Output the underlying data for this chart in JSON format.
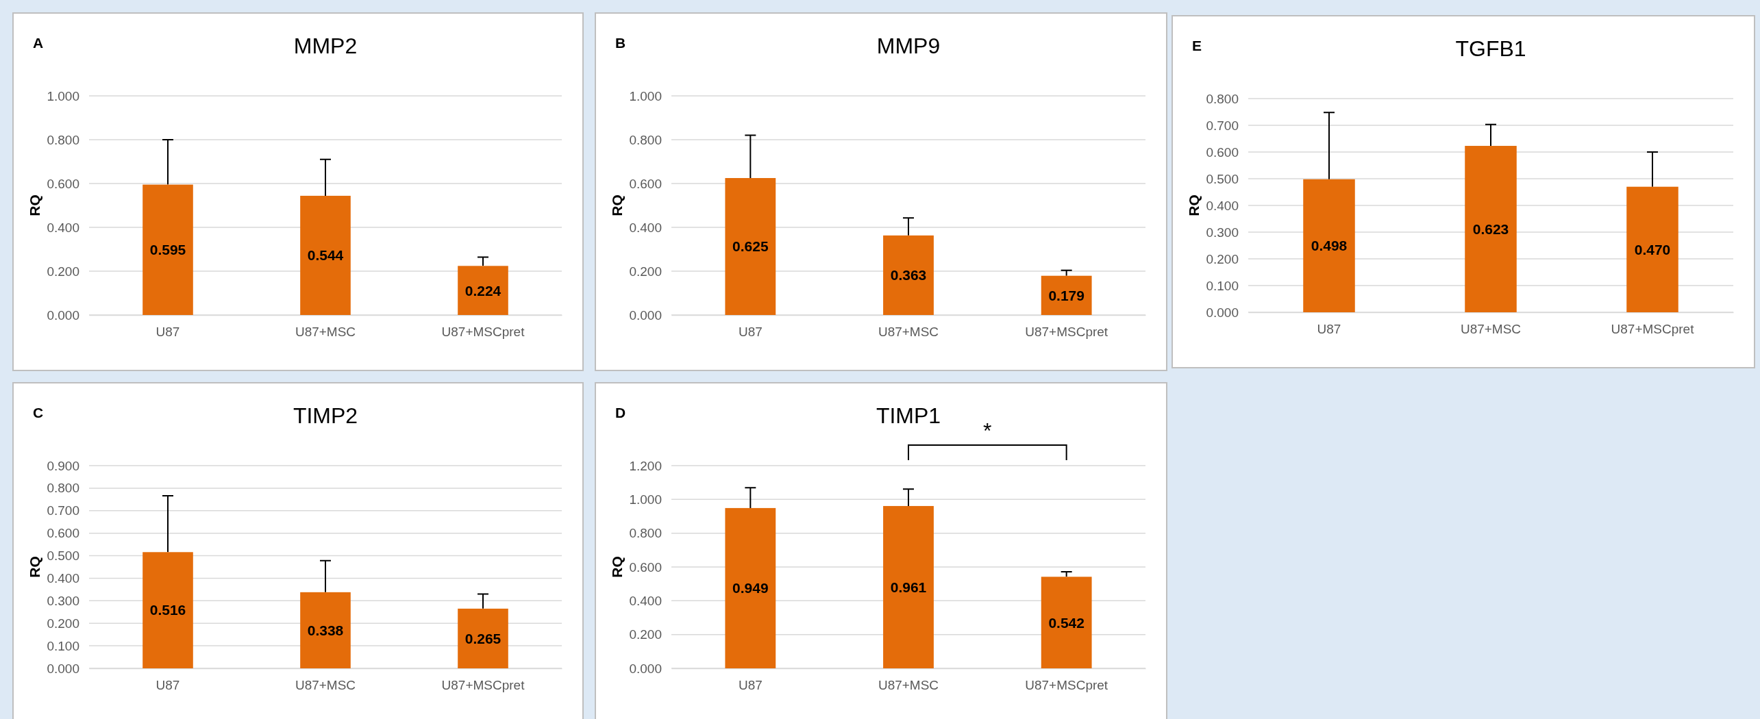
{
  "chart_data": [
    {
      "type": "bar",
      "title": "MMP2",
      "ylabel": "RQ",
      "annotations": [
        "A"
      ],
      "categories": [
        "U87",
        "U87+MSC",
        "U87+MSCpret"
      ],
      "values": [
        0.595,
        0.544,
        0.224
      ],
      "value_labels": [
        "0.595",
        "0.544",
        "0.224"
      ],
      "errors": [
        [
          0.595,
          0.8
        ],
        [
          0.544,
          0.71
        ],
        [
          0.224,
          0.264
        ]
      ],
      "color": "#e46c0a",
      "ylim": [
        0,
        1
      ],
      "yticks": [
        {
          "value": 0,
          "label": "0.000"
        },
        {
          "value": 0.2,
          "label": "0.200"
        },
        {
          "value": 0.4,
          "label": "0.400"
        },
        {
          "value": 0.6,
          "label": "0.600"
        },
        {
          "value": 0.8,
          "label": "0.800"
        },
        {
          "value": 1,
          "label": "1.000"
        }
      ],
      "grid": "y"
    },
    {
      "type": "bar",
      "title": "MMP9",
      "ylabel": "RQ",
      "annotations": [
        "B"
      ],
      "categories": [
        "U87",
        "U87+MSC",
        "U87+MSCpret"
      ],
      "values": [
        0.625,
        0.363,
        0.179
      ],
      "value_labels": [
        "0.625",
        "0.363",
        "0.179"
      ],
      "errors": [
        [
          0.625,
          0.82
        ],
        [
          0.363,
          0.443
        ],
        [
          0.179,
          0.204
        ]
      ],
      "color": "#e46c0a",
      "ylim": [
        0,
        1
      ],
      "yticks": [
        {
          "value": 0,
          "label": "0.000"
        },
        {
          "value": 0.2,
          "label": "0.200"
        },
        {
          "value": 0.4,
          "label": "0.400"
        },
        {
          "value": 0.6,
          "label": "0.600"
        },
        {
          "value": 0.8,
          "label": "0.800"
        },
        {
          "value": 1,
          "label": "1.000"
        }
      ],
      "grid": "y"
    },
    {
      "type": "bar",
      "title": "TGFB1",
      "ylabel": "RQ",
      "annotations": [
        "E"
      ],
      "categories": [
        "U87",
        "U87+MSC",
        "U87+MSCpret"
      ],
      "values": [
        0.498,
        0.623,
        0.47
      ],
      "value_labels": [
        "0.498",
        "0.623",
        "0.470"
      ],
      "errors": [
        [
          0.498,
          0.748
        ],
        [
          0.623,
          0.703
        ],
        [
          0.47,
          0.6
        ]
      ],
      "color": "#e46c0a",
      "ylim": [
        0,
        0.8
      ],
      "yticks": [
        {
          "value": 0,
          "label": "0.000"
        },
        {
          "value": 0.1,
          "label": "0.100"
        },
        {
          "value": 0.2,
          "label": "0.200"
        },
        {
          "value": 0.3,
          "label": "0.300"
        },
        {
          "value": 0.4,
          "label": "0.400"
        },
        {
          "value": 0.5,
          "label": "0.500"
        },
        {
          "value": 0.6,
          "label": "0.600"
        },
        {
          "value": 0.7,
          "label": "0.700"
        },
        {
          "value": 0.8,
          "label": "0.800"
        }
      ],
      "grid": "y"
    },
    {
      "type": "bar",
      "title": "TIMP2",
      "ylabel": "RQ",
      "annotations": [
        "C"
      ],
      "categories": [
        "U87",
        "U87+MSC",
        "U87+MSCpret"
      ],
      "values": [
        0.516,
        0.338,
        0.265
      ],
      "value_labels": [
        "0.516",
        "0.338",
        "0.265"
      ],
      "errors": [
        [
          0.516,
          0.766
        ],
        [
          0.338,
          0.478
        ],
        [
          0.265,
          0.33
        ]
      ],
      "color": "#e46c0a",
      "ylim": [
        0,
        0.9
      ],
      "yticks": [
        {
          "value": 0,
          "label": "0.000"
        },
        {
          "value": 0.1,
          "label": "0.100"
        },
        {
          "value": 0.2,
          "label": "0.200"
        },
        {
          "value": 0.3,
          "label": "0.300"
        },
        {
          "value": 0.4,
          "label": "0.400"
        },
        {
          "value": 0.5,
          "label": "0.500"
        },
        {
          "value": 0.6,
          "label": "0.600"
        },
        {
          "value": 0.7,
          "label": "0.700"
        },
        {
          "value": 0.8,
          "label": "0.800"
        },
        {
          "value": 0.9,
          "label": "0.900"
        }
      ],
      "grid": "y"
    },
    {
      "type": "bar",
      "title": "TIMP1",
      "ylabel": "RQ",
      "annotations": [
        "D",
        "*"
      ],
      "categories": [
        "U87",
        "U87+MSC",
        "U87+MSCpret"
      ],
      "values": [
        0.949,
        0.961,
        0.542
      ],
      "value_labels": [
        "0.949",
        "0.961",
        "0.542"
      ],
      "errors": [
        [
          0.949,
          1.069
        ],
        [
          0.961,
          1.061
        ],
        [
          0.542,
          0.572
        ]
      ],
      "color": "#e46c0a",
      "ylim": [
        0,
        1.2
      ],
      "yticks": [
        {
          "value": 0,
          "label": "0.000"
        },
        {
          "value": 0.2,
          "label": "0.200"
        },
        {
          "value": 0.4,
          "label": "0.400"
        },
        {
          "value": 0.6,
          "label": "0.600"
        },
        {
          "value": 0.8,
          "label": "0.800"
        },
        {
          "value": 1,
          "label": "1.000"
        },
        {
          "value": 1.2,
          "label": "1.200"
        }
      ],
      "grid": "y"
    }
  ]
}
